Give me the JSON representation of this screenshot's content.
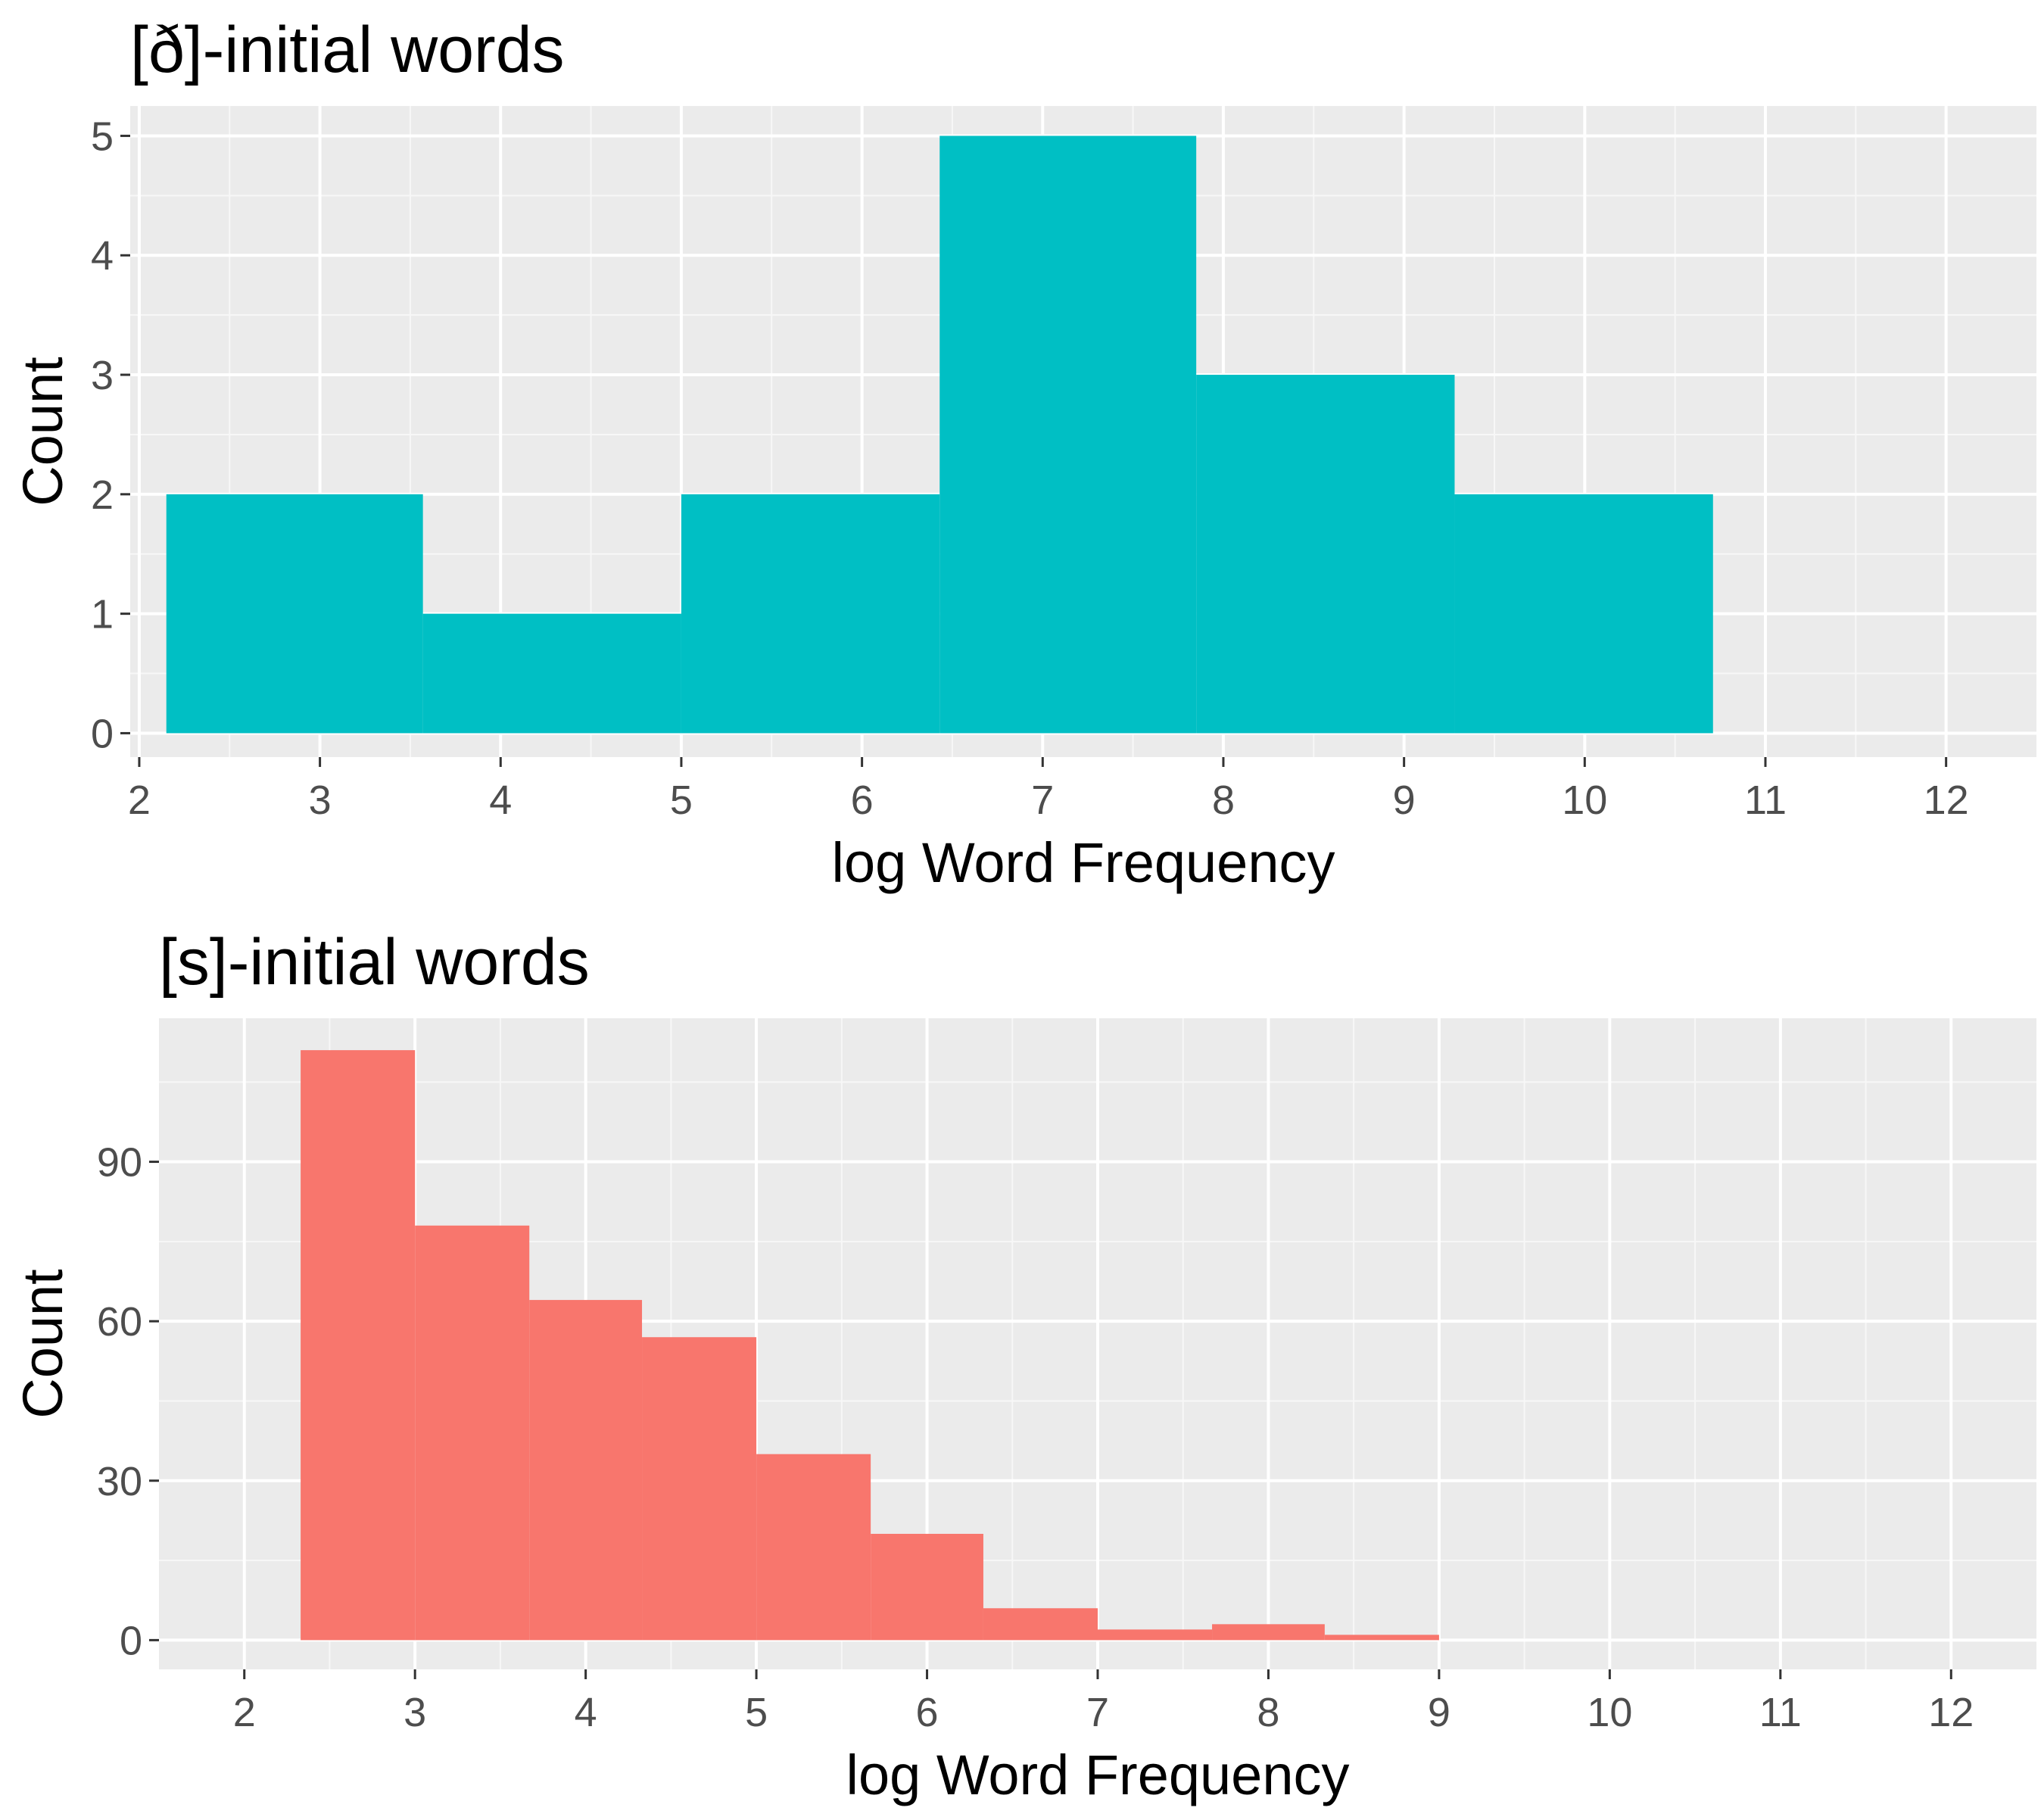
{
  "colors": {
    "panel_background": "#ebebeb",
    "grid_major": "#ffffff",
    "grid_minor": "#f7f7f7",
    "tick": "#333333",
    "tick_label": "#4d4d4d"
  },
  "chart_data": [
    {
      "type": "bar",
      "subtype": "histogram",
      "title": "[ð]-initial words",
      "xlabel": "log Word Frequency",
      "ylabel": "Count",
      "xlim": [
        1.95,
        12.5
      ],
      "ylim": [
        -0.2,
        5.25
      ],
      "xticks": [
        2,
        3,
        4,
        5,
        6,
        7,
        8,
        9,
        10,
        11,
        12
      ],
      "yticks": [
        0,
        1,
        2,
        3,
        4,
        5
      ],
      "grid": true,
      "color": "#00bfc4",
      "bins": [
        {
          "x0": 2.15,
          "x1": 3.57,
          "count": 2
        },
        {
          "x0": 3.57,
          "x1": 5.0,
          "count": 1
        },
        {
          "x0": 5.0,
          "x1": 6.43,
          "count": 2
        },
        {
          "x0": 6.43,
          "x1": 7.85,
          "count": 5
        },
        {
          "x0": 7.85,
          "x1": 9.28,
          "count": 3
        },
        {
          "x0": 9.28,
          "x1": 10.71,
          "count": 2
        }
      ]
    },
    {
      "type": "bar",
      "subtype": "histogram",
      "title": "[s]-initial words",
      "xlabel": "log Word Frequency",
      "ylabel": "Count",
      "xlim": [
        1.5,
        12.5
      ],
      "ylim": [
        -5.5,
        117
      ],
      "xticks": [
        2,
        3,
        4,
        5,
        6,
        7,
        8,
        9,
        10,
        11,
        12
      ],
      "yticks": [
        0,
        30,
        60,
        90
      ],
      "grid": true,
      "color": "#f8766d",
      "bins": [
        {
          "x0": 2.33,
          "x1": 3.0,
          "count": 111
        },
        {
          "x0": 3.0,
          "x1": 3.67,
          "count": 78
        },
        {
          "x0": 3.67,
          "x1": 4.33,
          "count": 64
        },
        {
          "x0": 4.33,
          "x1": 5.0,
          "count": 57
        },
        {
          "x0": 5.0,
          "x1": 5.67,
          "count": 35
        },
        {
          "x0": 5.67,
          "x1": 6.33,
          "count": 20
        },
        {
          "x0": 6.33,
          "x1": 7.0,
          "count": 6
        },
        {
          "x0": 7.0,
          "x1": 7.67,
          "count": 2
        },
        {
          "x0": 7.67,
          "x1": 8.33,
          "count": 3
        },
        {
          "x0": 8.33,
          "x1": 9.0,
          "count": 1
        }
      ]
    }
  ]
}
